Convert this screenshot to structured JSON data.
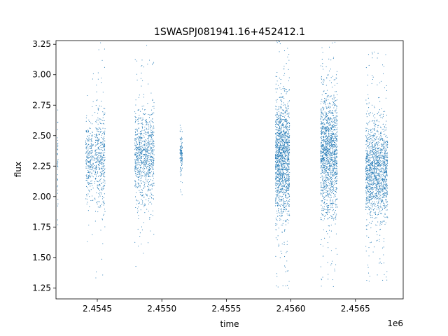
{
  "chart_data": {
    "type": "scatter",
    "title": "1SWASPJ081941.16+452412.1",
    "xlabel": "time",
    "ylabel": "flux",
    "x_offset_label": "1e6",
    "xlim": [
      2454180,
      2456870
    ],
    "ylim": [
      1.16,
      3.28
    ],
    "x_ticks": [
      2454500,
      2455000,
      2455500,
      2456000,
      2456500
    ],
    "x_tick_labels": [
      "2.4545",
      "2.4550",
      "2.4555",
      "2.4560",
      "2.4565"
    ],
    "y_ticks": [
      1.25,
      1.5,
      1.75,
      2.0,
      2.25,
      2.5,
      2.75,
      3.0,
      3.25
    ],
    "y_tick_labels": [
      "1.25",
      "1.50",
      "1.75",
      "2.00",
      "2.25",
      "2.50",
      "2.75",
      "3.00",
      "3.25"
    ],
    "marker_color": "#1f77b4",
    "grid": false,
    "clusters": [
      {
        "x_range": [
          2454190,
          2454196
        ],
        "y_center": 2.3,
        "y_spread": 0.45,
        "points": 40
      },
      {
        "x_range": [
          2454410,
          2454470
        ],
        "y_center": 2.3,
        "y_spread": 0.35,
        "points": 260
      },
      {
        "x_range": [
          2454480,
          2454560
        ],
        "y_center": 2.3,
        "y_spread": 0.45,
        "points": 420
      },
      {
        "x_range": [
          2454790,
          2454940
        ],
        "y_center": 2.32,
        "y_spread": 0.42,
        "points": 900
      },
      {
        "x_range": [
          2455140,
          2455160
        ],
        "y_center": 2.33,
        "y_spread": 0.18,
        "points": 120
      },
      {
        "x_range": [
          2455880,
          2455990
        ],
        "y_center": 2.3,
        "y_spread": 0.55,
        "points": 1500
      },
      {
        "x_range": [
          2456230,
          2456360
        ],
        "y_center": 2.35,
        "y_spread": 0.55,
        "points": 1500
      },
      {
        "x_range": [
          2456580,
          2456750
        ],
        "y_center": 2.2,
        "y_spread": 0.45,
        "points": 1500
      }
    ]
  }
}
